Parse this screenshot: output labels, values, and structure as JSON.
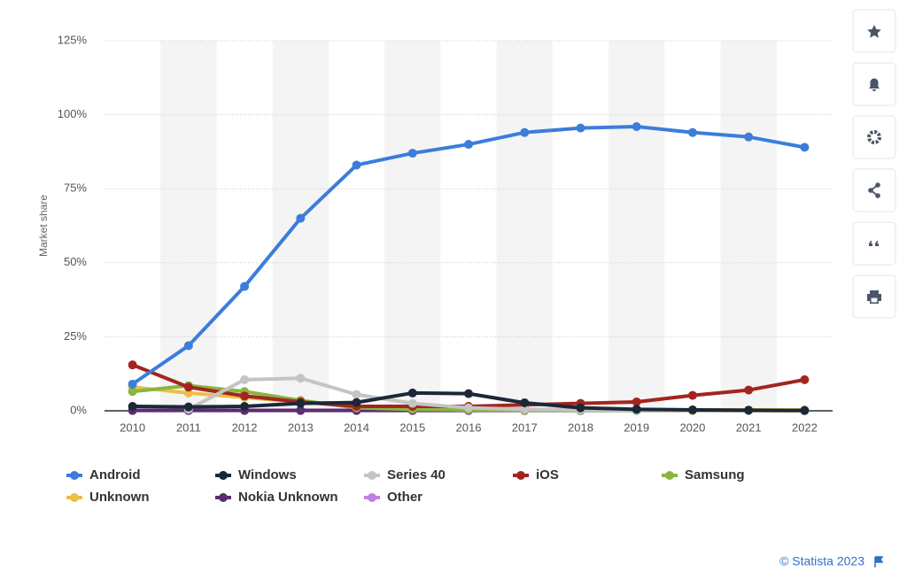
{
  "chart_data": {
    "type": "line",
    "y_label": "Market share",
    "categories": [
      "2010",
      "2011",
      "2012",
      "2013",
      "2014",
      "2015",
      "2016",
      "2017",
      "2018",
      "2019",
      "2020",
      "2021",
      "2022"
    ],
    "ylim": [
      0,
      125
    ],
    "yticks": [
      {
        "value": 0,
        "label": "0%"
      },
      {
        "value": 25,
        "label": "25%"
      },
      {
        "value": 50,
        "label": "50%"
      },
      {
        "value": 75,
        "label": "75%"
      },
      {
        "value": 100,
        "label": "100%"
      },
      {
        "value": 125,
        "label": "125%"
      }
    ],
    "grid": true,
    "series": [
      {
        "name": "Android",
        "color": "#3c7ddb",
        "values": [
          9,
          22,
          42,
          65,
          83,
          87,
          90,
          94,
          95.5,
          96,
          94,
          92.5,
          89
        ]
      },
      {
        "name": "Windows",
        "color": "#1b2838",
        "values": [
          1.5,
          1.3,
          1.5,
          2.5,
          2.8,
          6,
          5.8,
          2.7,
          1,
          0.5,
          0.3,
          0.2,
          0.1
        ]
      },
      {
        "name": "Series 40",
        "color": "#c4c4c4",
        "values": [
          null,
          0.5,
          10.5,
          11,
          5.5,
          2.5,
          1,
          0.5,
          0.3,
          0.2,
          0.2,
          0.1,
          0.1
        ]
      },
      {
        "name": "iOS",
        "color": "#a3251f",
        "values": [
          15.5,
          8,
          5,
          3,
          1.5,
          1.5,
          1.5,
          2,
          2.5,
          3,
          5.2,
          7,
          10.5
        ]
      },
      {
        "name": "Samsung",
        "color": "#8ab540",
        "values": [
          6.5,
          8.5,
          6.5,
          3.5,
          1,
          0.5,
          0.3,
          0.2,
          0.2,
          0.1,
          0.1,
          0.1,
          0.1
        ]
      },
      {
        "name": "Unknown",
        "color": "#ebbf45",
        "values": [
          8,
          6,
          4.5,
          3,
          1.5,
          1,
          0.8,
          0.5,
          0.3,
          0.3,
          0.3,
          0.3,
          0.3
        ]
      },
      {
        "name": "Nokia Unknown",
        "color": "#5b2d6e",
        "values": [
          0.1,
          0.1,
          0.1,
          0.1,
          0.1,
          0.1,
          0.1,
          0.1,
          0.1,
          0.1,
          0.1,
          0.1,
          0.1
        ]
      },
      {
        "name": "Other",
        "color": "#c17fe0",
        "values": [
          0.2,
          0.2,
          0.2,
          0.2,
          0.2,
          0.2,
          0.2,
          0.2,
          0.2,
          0.2,
          0.2,
          0.2,
          0.2
        ]
      }
    ]
  },
  "credits": "© Statista 2023"
}
